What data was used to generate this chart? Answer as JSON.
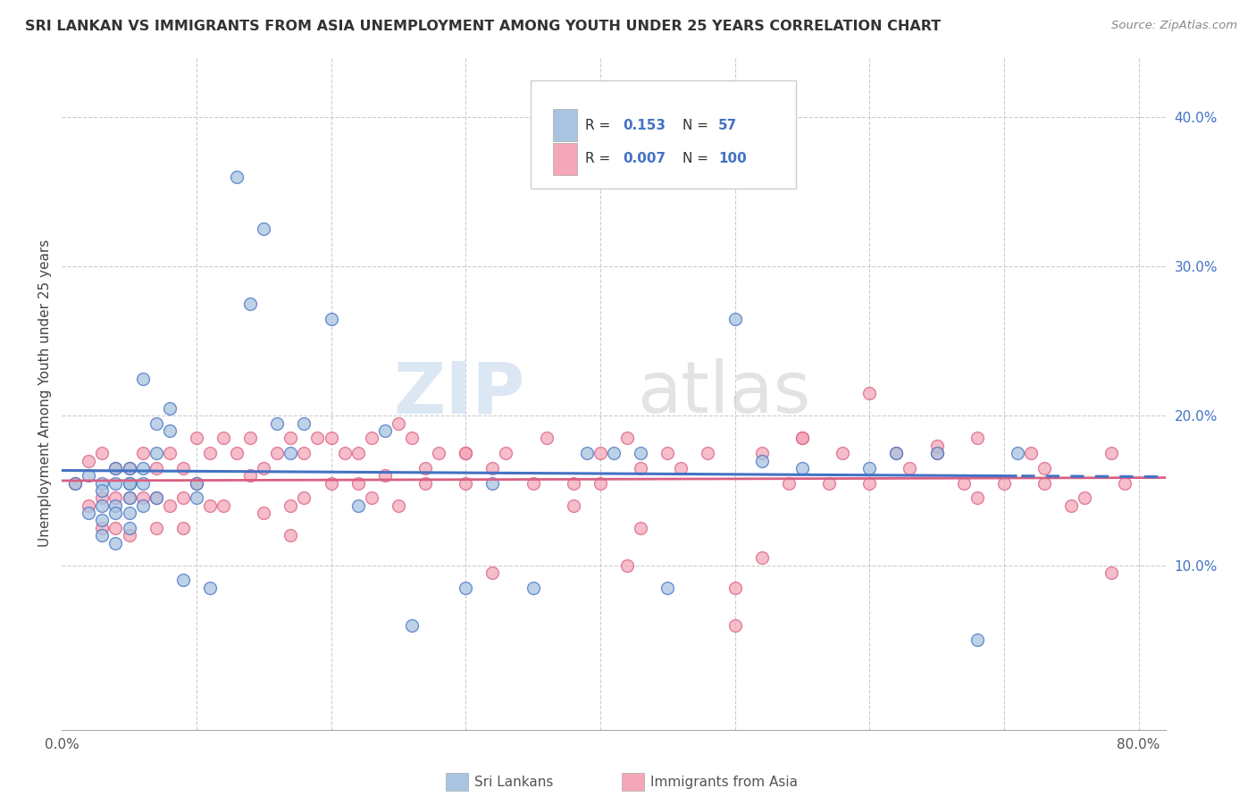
{
  "title": "SRI LANKAN VS IMMIGRANTS FROM ASIA UNEMPLOYMENT AMONG YOUTH UNDER 25 YEARS CORRELATION CHART",
  "source": "Source: ZipAtlas.com",
  "ylabel": "Unemployment Among Youth under 25 years",
  "xlim": [
    0.0,
    0.82
  ],
  "ylim": [
    -0.01,
    0.44
  ],
  "R_sri": "0.153",
  "N_sri": "57",
  "R_asia": "0.007",
  "N_asia": "100",
  "legend_sri": "Sri Lankans",
  "legend_asia": "Immigrants from Asia",
  "sri_color": "#a8c4e0",
  "asia_color": "#f4a7b9",
  "sri_line_color": "#4472c4",
  "asia_line_color": "#d96082",
  "sri_x": [
    0.01,
    0.02,
    0.02,
    0.03,
    0.03,
    0.03,
    0.03,
    0.03,
    0.04,
    0.04,
    0.04,
    0.04,
    0.04,
    0.05,
    0.05,
    0.05,
    0.05,
    0.05,
    0.05,
    0.06,
    0.06,
    0.06,
    0.06,
    0.07,
    0.07,
    0.07,
    0.08,
    0.08,
    0.09,
    0.1,
    0.1,
    0.11,
    0.13,
    0.14,
    0.15,
    0.16,
    0.17,
    0.18,
    0.2,
    0.22,
    0.24,
    0.26,
    0.3,
    0.32,
    0.35,
    0.39,
    0.41,
    0.43,
    0.45,
    0.5,
    0.52,
    0.55,
    0.6,
    0.62,
    0.65,
    0.68,
    0.71
  ],
  "sri_y": [
    0.155,
    0.16,
    0.135,
    0.155,
    0.15,
    0.14,
    0.13,
    0.12,
    0.165,
    0.155,
    0.14,
    0.135,
    0.115,
    0.165,
    0.155,
    0.155,
    0.145,
    0.135,
    0.125,
    0.225,
    0.165,
    0.155,
    0.14,
    0.195,
    0.175,
    0.145,
    0.205,
    0.19,
    0.09,
    0.145,
    0.155,
    0.085,
    0.36,
    0.275,
    0.325,
    0.195,
    0.175,
    0.195,
    0.265,
    0.14,
    0.19,
    0.06,
    0.085,
    0.155,
    0.085,
    0.175,
    0.175,
    0.175,
    0.085,
    0.265,
    0.17,
    0.165,
    0.165,
    0.175,
    0.175,
    0.05,
    0.175
  ],
  "asia_x": [
    0.01,
    0.02,
    0.02,
    0.03,
    0.03,
    0.03,
    0.04,
    0.04,
    0.04,
    0.05,
    0.05,
    0.05,
    0.06,
    0.06,
    0.07,
    0.07,
    0.07,
    0.08,
    0.08,
    0.09,
    0.09,
    0.09,
    0.1,
    0.1,
    0.11,
    0.11,
    0.12,
    0.12,
    0.13,
    0.14,
    0.14,
    0.15,
    0.15,
    0.16,
    0.17,
    0.17,
    0.18,
    0.18,
    0.19,
    0.2,
    0.2,
    0.21,
    0.22,
    0.22,
    0.23,
    0.24,
    0.25,
    0.25,
    0.26,
    0.27,
    0.28,
    0.3,
    0.3,
    0.32,
    0.33,
    0.35,
    0.36,
    0.38,
    0.4,
    0.4,
    0.42,
    0.43,
    0.45,
    0.46,
    0.48,
    0.5,
    0.52,
    0.54,
    0.55,
    0.57,
    0.58,
    0.6,
    0.62,
    0.63,
    0.65,
    0.67,
    0.68,
    0.7,
    0.72,
    0.73,
    0.75,
    0.76,
    0.78,
    0.79,
    0.23,
    0.27,
    0.32,
    0.38,
    0.17,
    0.43,
    0.52,
    0.6,
    0.68,
    0.5,
    0.65,
    0.73,
    0.78,
    0.55,
    0.42,
    0.3
  ],
  "asia_y": [
    0.155,
    0.17,
    0.14,
    0.175,
    0.145,
    0.125,
    0.165,
    0.145,
    0.125,
    0.165,
    0.145,
    0.12,
    0.175,
    0.145,
    0.165,
    0.145,
    0.125,
    0.175,
    0.14,
    0.165,
    0.145,
    0.125,
    0.185,
    0.155,
    0.175,
    0.14,
    0.185,
    0.14,
    0.175,
    0.185,
    0.16,
    0.165,
    0.135,
    0.175,
    0.185,
    0.14,
    0.175,
    0.145,
    0.185,
    0.185,
    0.155,
    0.175,
    0.175,
    0.155,
    0.185,
    0.16,
    0.195,
    0.14,
    0.185,
    0.165,
    0.175,
    0.175,
    0.155,
    0.165,
    0.175,
    0.155,
    0.185,
    0.155,
    0.175,
    0.155,
    0.185,
    0.165,
    0.175,
    0.165,
    0.175,
    0.085,
    0.175,
    0.155,
    0.185,
    0.155,
    0.175,
    0.155,
    0.175,
    0.165,
    0.175,
    0.155,
    0.185,
    0.155,
    0.175,
    0.155,
    0.14,
    0.145,
    0.175,
    0.155,
    0.145,
    0.155,
    0.095,
    0.14,
    0.12,
    0.125,
    0.105,
    0.215,
    0.145,
    0.06,
    0.18,
    0.165,
    0.095,
    0.185,
    0.1,
    0.175
  ]
}
